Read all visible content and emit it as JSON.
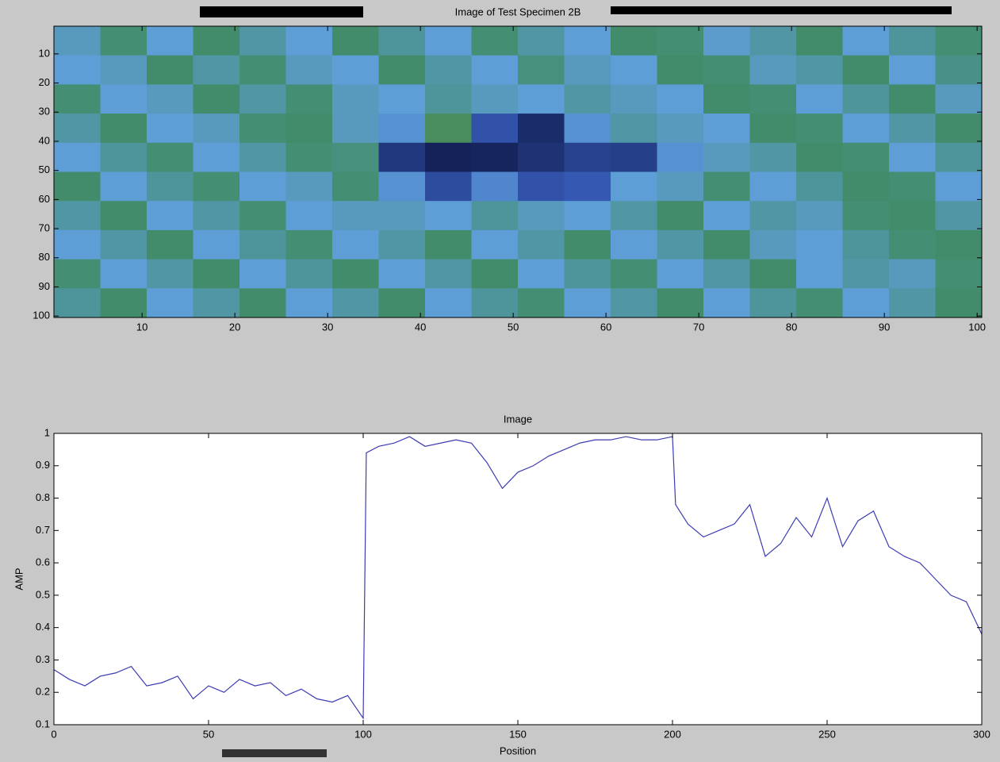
{
  "chart_data": [
    {
      "type": "heatmap",
      "title": "Image of Test Specimen 2B",
      "xlim": [
        0.5,
        100.5
      ],
      "ylim": [
        100.5,
        0.5
      ],
      "xticks": [
        10,
        20,
        30,
        40,
        50,
        60,
        70,
        80,
        90,
        100
      ],
      "yticks": [
        10,
        20,
        30,
        40,
        50,
        60,
        70,
        80,
        90,
        100
      ],
      "clim": [
        0,
        1
      ],
      "colormap": [
        "#0b1240",
        "#3b62c2",
        "#5d9ed6",
        "#3e8a5c",
        "#8fa553"
      ],
      "z": [
        [
          0.55,
          0.7,
          0.5,
          0.72,
          0.6,
          0.5,
          0.72,
          0.62,
          0.5,
          0.7,
          0.6,
          0.5,
          0.72,
          0.7,
          0.52,
          0.6,
          0.72,
          0.5,
          0.62,
          0.7
        ],
        [
          0.5,
          0.55,
          0.72,
          0.6,
          0.7,
          0.55,
          0.5,
          0.72,
          0.6,
          0.5,
          0.68,
          0.55,
          0.5,
          0.72,
          0.7,
          0.55,
          0.6,
          0.72,
          0.5,
          0.66
        ],
        [
          0.7,
          0.5,
          0.55,
          0.72,
          0.6,
          0.7,
          0.55,
          0.5,
          0.62,
          0.55,
          0.5,
          0.6,
          0.55,
          0.5,
          0.72,
          0.7,
          0.5,
          0.62,
          0.72,
          0.55
        ],
        [
          0.6,
          0.72,
          0.5,
          0.55,
          0.7,
          0.72,
          0.55,
          0.45,
          0.78,
          0.2,
          0.08,
          0.45,
          0.6,
          0.55,
          0.5,
          0.72,
          0.7,
          0.5,
          0.6,
          0.72
        ],
        [
          0.5,
          0.62,
          0.7,
          0.5,
          0.6,
          0.7,
          0.68,
          0.12,
          0.05,
          0.06,
          0.1,
          0.15,
          0.14,
          0.45,
          0.55,
          0.6,
          0.72,
          0.7,
          0.5,
          0.62
        ],
        [
          0.72,
          0.5,
          0.62,
          0.7,
          0.5,
          0.55,
          0.7,
          0.45,
          0.18,
          0.4,
          0.2,
          0.22,
          0.5,
          0.55,
          0.7,
          0.5,
          0.62,
          0.72,
          0.7,
          0.5
        ],
        [
          0.6,
          0.72,
          0.5,
          0.6,
          0.7,
          0.5,
          0.55,
          0.55,
          0.5,
          0.62,
          0.55,
          0.5,
          0.6,
          0.72,
          0.5,
          0.6,
          0.55,
          0.7,
          0.72,
          0.6
        ],
        [
          0.5,
          0.6,
          0.72,
          0.5,
          0.62,
          0.7,
          0.5,
          0.6,
          0.72,
          0.5,
          0.6,
          0.72,
          0.5,
          0.6,
          0.72,
          0.55,
          0.5,
          0.62,
          0.7,
          0.72
        ],
        [
          0.7,
          0.5,
          0.6,
          0.72,
          0.5,
          0.62,
          0.72,
          0.5,
          0.6,
          0.72,
          0.5,
          0.62,
          0.7,
          0.5,
          0.6,
          0.72,
          0.5,
          0.6,
          0.55,
          0.7
        ],
        [
          0.62,
          0.72,
          0.5,
          0.6,
          0.72,
          0.5,
          0.6,
          0.72,
          0.5,
          0.62,
          0.7,
          0.5,
          0.6,
          0.72,
          0.5,
          0.62,
          0.7,
          0.5,
          0.6,
          0.72
        ]
      ]
    },
    {
      "type": "line",
      "title": "Image",
      "xlabel": "Position",
      "ylabel": "AMP",
      "xlim": [
        0,
        300
      ],
      "ylim": [
        0.1,
        1
      ],
      "xticks": [
        0,
        50,
        100,
        150,
        200,
        250,
        300
      ],
      "yticks": [
        0.1,
        0.2,
        0.3,
        0.4,
        0.5,
        0.6,
        0.7,
        0.8,
        0.9,
        1
      ],
      "x": [
        0,
        5,
        10,
        15,
        20,
        25,
        30,
        35,
        40,
        45,
        50,
        55,
        60,
        65,
        70,
        75,
        80,
        85,
        90,
        95,
        100,
        101,
        105,
        110,
        115,
        120,
        125,
        130,
        135,
        140,
        145,
        150,
        155,
        160,
        165,
        170,
        175,
        180,
        185,
        190,
        195,
        200,
        201,
        205,
        210,
        215,
        220,
        225,
        230,
        235,
        240,
        245,
        250,
        255,
        260,
        265,
        270,
        275,
        280,
        285,
        290,
        295,
        300
      ],
      "series": [
        {
          "color": "#3c3cb4",
          "values": [
            0.27,
            0.24,
            0.22,
            0.25,
            0.26,
            0.28,
            0.22,
            0.23,
            0.25,
            0.18,
            0.22,
            0.2,
            0.24,
            0.22,
            0.23,
            0.19,
            0.21,
            0.18,
            0.17,
            0.19,
            0.12,
            0.94,
            0.96,
            0.97,
            0.99,
            0.96,
            0.97,
            0.98,
            0.97,
            0.91,
            0.83,
            0.88,
            0.9,
            0.93,
            0.95,
            0.97,
            0.98,
            0.98,
            0.99,
            0.98,
            0.98,
            0.99,
            0.78,
            0.72,
            0.68,
            0.7,
            0.72,
            0.78,
            0.62,
            0.66,
            0.74,
            0.68,
            0.8,
            0.65,
            0.73,
            0.76,
            0.65,
            0.62,
            0.6,
            0.55,
            0.5,
            0.48,
            0.38
          ]
        }
      ]
    }
  ]
}
